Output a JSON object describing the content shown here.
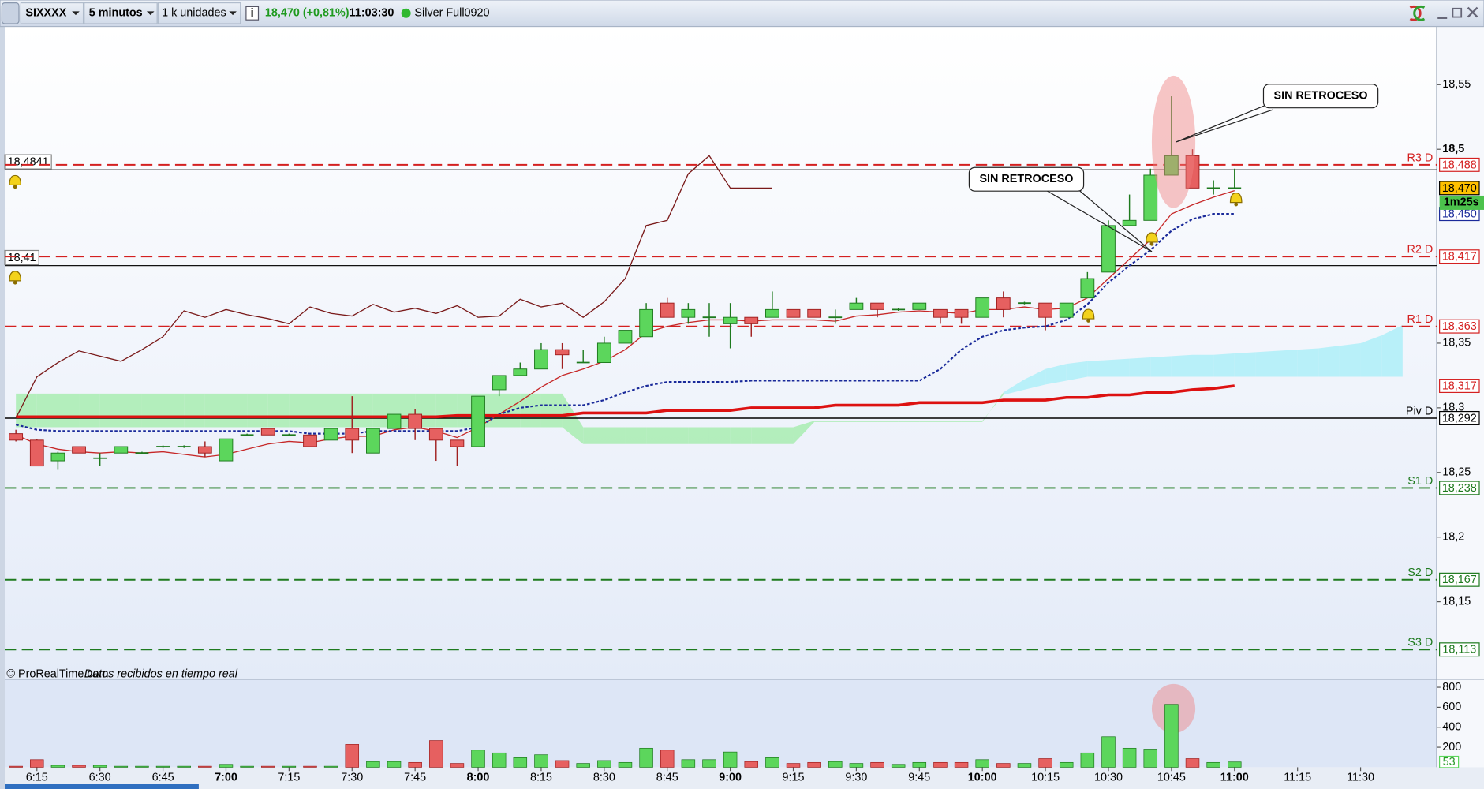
{
  "toolbar": {
    "symbol": "SIXXXX",
    "interval": "5 minutos",
    "units": "1 k unidades",
    "quote": "18,470 (+0,81%)",
    "time": "11:03:30",
    "instrument": "Silver Full0920"
  },
  "chart_data": [
    {
      "type": "candlestick",
      "categories": [
        null,
        "6:15",
        null,
        null,
        "6:30",
        null,
        null,
        "6:45",
        null,
        null,
        "7:00",
        null,
        null,
        "7:15",
        null,
        null,
        "7:30",
        null,
        null,
        "7:45",
        null,
        null,
        "8:00",
        null,
        null,
        "8:15",
        null,
        null,
        "8:30",
        null,
        null,
        "8:45",
        null,
        null,
        "9:00",
        null,
        null,
        "9:15",
        null,
        null,
        "9:30",
        null,
        null,
        "9:45",
        null,
        null,
        "10:00",
        null,
        null,
        "10:15",
        null,
        null,
        "10:30",
        null,
        null,
        "10:45",
        null,
        null,
        "11:00",
        null,
        null,
        "11:15",
        null,
        null,
        "11:30",
        null,
        null
      ],
      "open": [
        18.28,
        18.275,
        18.259,
        18.27,
        18.261,
        18.265,
        18.265,
        18.27,
        18.27,
        18.27,
        18.259,
        18.279,
        18.284,
        18.279,
        18.279,
        18.275,
        18.284,
        18.265,
        18.284,
        18.295,
        18.284,
        18.275,
        18.27,
        18.314,
        18.325,
        18.33,
        18.345,
        18.335,
        18.335,
        18.35,
        18.355,
        18.381,
        18.37,
        18.37,
        18.365,
        18.37,
        18.37,
        18.376,
        18.376,
        18.37,
        18.376,
        18.381,
        18.376,
        18.376,
        18.376,
        18.376,
        18.37,
        18.385,
        18.381,
        18.381,
        18.37,
        18.385,
        18.405,
        18.441,
        18.445,
        18.48,
        18.495,
        18.47,
        18.47,
        null,
        null,
        null,
        null,
        null,
        null,
        null,
        null
      ],
      "high": [
        18.283,
        18.276,
        18.266,
        18.27,
        18.265,
        18.27,
        18.266,
        18.271,
        18.271,
        18.274,
        18.276,
        18.28,
        18.284,
        18.28,
        18.279,
        18.284,
        18.309,
        18.284,
        18.295,
        18.299,
        18.284,
        18.275,
        18.309,
        18.325,
        18.335,
        18.35,
        18.35,
        18.345,
        18.355,
        18.36,
        18.381,
        18.385,
        18.381,
        18.381,
        18.381,
        18.37,
        18.39,
        18.376,
        18.376,
        18.376,
        18.385,
        18.381,
        18.377,
        18.381,
        18.376,
        18.376,
        18.385,
        18.39,
        18.382,
        18.381,
        18.381,
        18.405,
        18.445,
        18.465,
        18.485,
        18.541,
        18.5,
        18.476,
        18.485,
        null,
        null,
        null,
        null,
        null,
        null,
        null,
        null
      ],
      "low": [
        18.274,
        18.255,
        18.252,
        18.265,
        18.255,
        18.265,
        18.264,
        18.269,
        18.269,
        18.262,
        18.259,
        18.278,
        18.279,
        18.278,
        18.27,
        18.275,
        18.265,
        18.265,
        18.284,
        18.275,
        18.259,
        18.255,
        18.27,
        18.309,
        18.325,
        18.33,
        18.33,
        18.335,
        18.335,
        18.35,
        18.355,
        18.37,
        18.365,
        18.355,
        18.346,
        18.355,
        18.37,
        18.37,
        18.37,
        18.365,
        18.376,
        18.37,
        18.375,
        18.376,
        18.365,
        18.365,
        18.37,
        18.37,
        18.38,
        18.36,
        18.37,
        18.385,
        18.405,
        18.441,
        18.445,
        18.48,
        18.47,
        18.465,
        18.47,
        null,
        null,
        null,
        null,
        null,
        null,
        null,
        null
      ],
      "close": [
        18.275,
        18.255,
        18.265,
        18.265,
        18.261,
        18.27,
        18.265,
        18.27,
        18.27,
        18.265,
        18.276,
        18.279,
        18.279,
        18.279,
        18.27,
        18.284,
        18.275,
        18.284,
        18.295,
        18.284,
        18.275,
        18.27,
        18.309,
        18.325,
        18.33,
        18.345,
        18.341,
        18.335,
        18.35,
        18.36,
        18.376,
        18.37,
        18.376,
        18.37,
        18.37,
        18.365,
        18.376,
        18.37,
        18.37,
        18.37,
        18.381,
        18.376,
        18.376,
        18.381,
        18.37,
        18.37,
        18.385,
        18.376,
        18.381,
        18.37,
        18.381,
        18.4,
        18.441,
        18.445,
        18.48,
        18.495,
        18.47,
        18.47,
        18.47,
        null,
        null,
        null,
        null,
        null,
        null,
        null,
        null
      ],
      "up_color": "#5cd65c",
      "down_color": "#e66060",
      "doji_color": "#1e7a1e",
      "ylim": [
        18.09,
        18.595
      ],
      "yticks": [
        {
          "value": 18.15,
          "label": "18,15"
        },
        {
          "value": 18.2,
          "label": "18,2"
        },
        {
          "value": 18.25,
          "label": "18,25"
        },
        {
          "value": 18.3,
          "label": "18,3"
        },
        {
          "value": 18.35,
          "label": "18,35"
        },
        {
          "value": 18.5,
          "label": "18,5"
        },
        {
          "value": 18.55,
          "label": "18,55"
        }
      ],
      "overlays": [
        {
          "color": "#c62828",
          "style": "thin",
          "values": [
            18.279,
            18.272,
            18.268,
            18.266,
            18.265,
            18.266,
            18.265,
            18.266,
            18.264,
            18.262,
            18.264,
            18.268,
            18.272,
            18.274,
            18.273,
            18.276,
            18.278,
            18.278,
            18.283,
            18.285,
            18.282,
            18.277,
            18.285,
            18.295,
            18.305,
            18.316,
            18.325,
            18.33,
            18.336,
            18.345,
            18.358,
            18.363,
            18.366,
            18.368,
            18.368,
            18.367,
            18.368,
            18.368,
            18.368,
            18.367,
            18.371,
            18.372,
            18.374,
            18.375,
            18.374,
            18.373,
            18.376,
            18.376,
            18.378,
            18.376,
            18.377,
            18.385,
            18.4,
            18.415,
            18.43,
            18.45,
            18.457,
            18.463,
            18.468,
            null,
            null,
            null,
            null,
            null,
            null,
            null,
            null
          ]
        },
        {
          "color": "#1a2a9a",
          "style": "dotted",
          "values": [
            18.287,
            18.283,
            18.282,
            18.282,
            18.282,
            18.282,
            18.282,
            18.282,
            18.282,
            18.282,
            18.282,
            18.282,
            18.282,
            18.282,
            18.28,
            18.28,
            18.28,
            18.282,
            18.282,
            18.282,
            18.282,
            18.282,
            18.285,
            18.295,
            18.3,
            18.302,
            18.302,
            18.302,
            18.306,
            18.312,
            18.317,
            18.32,
            18.32,
            18.32,
            18.32,
            18.321,
            18.321,
            18.321,
            18.321,
            18.321,
            18.321,
            18.321,
            18.321,
            18.321,
            18.33,
            18.345,
            18.355,
            18.36,
            18.362,
            18.363,
            18.368,
            18.38,
            18.397,
            18.41,
            18.422,
            18.437,
            18.446,
            18.45,
            18.45,
            null,
            null,
            null,
            null,
            null,
            null,
            null,
            null
          ]
        },
        {
          "color": "#dd1111",
          "style": "thick",
          "values": [
            18.293,
            18.293,
            18.293,
            18.293,
            18.293,
            18.293,
            18.293,
            18.293,
            18.293,
            18.293,
            18.293,
            18.293,
            18.293,
            18.293,
            18.293,
            18.293,
            18.293,
            18.293,
            18.293,
            18.293,
            18.293,
            18.294,
            18.294,
            18.294,
            18.294,
            18.294,
            18.294,
            18.296,
            18.296,
            18.296,
            18.296,
            18.298,
            18.298,
            18.298,
            18.298,
            18.3,
            18.3,
            18.3,
            18.3,
            18.302,
            18.302,
            18.302,
            18.302,
            18.304,
            18.304,
            18.304,
            18.304,
            18.306,
            18.306,
            18.306,
            18.308,
            18.308,
            18.31,
            18.31,
            18.312,
            18.312,
            18.314,
            18.315,
            18.317,
            null,
            null,
            null,
            null,
            null,
            null,
            null,
            null
          ]
        },
        {
          "color": "#7a1a1a",
          "style": "thin",
          "values": [
            18.292,
            18.324,
            18.335,
            18.344,
            18.34,
            18.336,
            18.345,
            18.355,
            18.375,
            18.37,
            18.376,
            18.372,
            18.369,
            18.365,
            18.378,
            18.373,
            18.371,
            18.38,
            18.374,
            18.377,
            18.373,
            18.379,
            18.37,
            18.371,
            18.384,
            18.378,
            18.381,
            18.37,
            18.382,
            18.4,
            18.441,
            18.445,
            18.481,
            18.495,
            18.47,
            18.47,
            18.47,
            null,
            null,
            null,
            null,
            null,
            null,
            null,
            null,
            null,
            null,
            null,
            null,
            null,
            null,
            null,
            null,
            null,
            null,
            null,
            null,
            null,
            null,
            null,
            null,
            null,
            null,
            null,
            null,
            null,
            null
          ]
        }
      ],
      "cloud": {
        "colors": [
          "#a8ecb0",
          "#aeeef8"
        ],
        "span_a": [
          18.311,
          18.311,
          18.311,
          18.311,
          18.311,
          18.311,
          18.311,
          18.311,
          18.311,
          18.311,
          18.311,
          18.311,
          18.311,
          18.311,
          18.311,
          18.311,
          18.311,
          18.311,
          18.311,
          18.311,
          18.311,
          18.311,
          18.311,
          18.311,
          18.311,
          18.311,
          18.311,
          18.285,
          18.285,
          18.285,
          18.285,
          18.285,
          18.285,
          18.285,
          18.285,
          18.285,
          18.285,
          18.285,
          18.29,
          18.29,
          18.29,
          18.29,
          18.29,
          18.29,
          18.29,
          18.29,
          18.29,
          18.31,
          18.314,
          18.318,
          18.321,
          18.324,
          18.324,
          18.324,
          18.324,
          18.324,
          18.324,
          18.324,
          18.324,
          18.324,
          18.324,
          18.324,
          18.324,
          18.324,
          18.324,
          18.324,
          18.324
        ],
        "span_b": [
          18.285,
          18.285,
          18.285,
          18.285,
          18.285,
          18.285,
          18.285,
          18.285,
          18.285,
          18.285,
          18.285,
          18.285,
          18.285,
          18.285,
          18.285,
          18.285,
          18.285,
          18.285,
          18.285,
          18.285,
          18.285,
          18.285,
          18.285,
          18.285,
          18.285,
          18.285,
          18.285,
          18.272,
          18.272,
          18.272,
          18.272,
          18.272,
          18.272,
          18.272,
          18.272,
          18.272,
          18.272,
          18.272,
          18.289,
          18.289,
          18.289,
          18.289,
          18.289,
          18.289,
          18.289,
          18.289,
          18.289,
          18.312,
          18.322,
          18.33,
          18.334,
          18.336,
          18.337,
          18.338,
          18.339,
          18.34,
          18.341,
          18.341,
          18.342,
          18.343,
          18.344,
          18.345,
          18.346,
          18.348,
          18.35,
          18.356,
          18.364
        ]
      },
      "levels": [
        {
          "name": "R3 D",
          "value": 18.488,
          "label": "18,488",
          "color": "#d42020",
          "style": "dashed"
        },
        {
          "name": "R2 D",
          "value": 18.417,
          "label": "18,417",
          "color": "#d42020",
          "style": "dashed"
        },
        {
          "name": "R1 D",
          "value": 18.363,
          "label": "18,363",
          "color": "#d42020",
          "style": "dashed"
        },
        {
          "name": "Piv D",
          "value": 18.292,
          "label": "18,292",
          "color": "#000000",
          "style": "solid"
        },
        {
          "name": "S1 D",
          "value": 18.238,
          "label": "18,238",
          "color": "#1e7a1e",
          "style": "dashed"
        },
        {
          "name": "S2 D",
          "value": 18.167,
          "label": "18,167",
          "color": "#1e7a1e",
          "style": "dashed"
        },
        {
          "name": "S3 D",
          "value": 18.113,
          "label": "18,113",
          "color": "#1e7a1e",
          "style": "dashed"
        }
      ],
      "marker_lines": [
        {
          "value": 18.4841,
          "label": "18,4841"
        },
        {
          "value": 18.41,
          "label": "18,41"
        }
      ],
      "price_tags": [
        {
          "value": 18.47,
          "label": "18,470",
          "background": "#ffc000",
          "color": "#000000"
        },
        {
          "value": 18.45,
          "label": "18,450",
          "background": "#ffffff",
          "color": "#1a2a9a"
        },
        {
          "value": 18.317,
          "label": "18,317",
          "background": "#ffffff",
          "color": "#d42020"
        }
      ],
      "countdown": "1m25s",
      "annotations": [
        "SIN RETROCESO",
        "SIN RETROCESO"
      ],
      "source": "© ProRealTime.com",
      "source_note": "Datos recibidos en tiempo real"
    },
    {
      "type": "volume",
      "values": [
        10,
        76,
        19,
        19,
        19,
        10,
        10,
        10,
        10,
        10,
        29,
        10,
        10,
        10,
        10,
        10,
        229,
        57,
        57,
        48,
        267,
        38,
        171,
        143,
        95,
        124,
        67,
        38,
        67,
        48,
        190,
        171,
        76,
        76,
        152,
        57,
        95,
        38,
        48,
        57,
        38,
        48,
        29,
        48,
        48,
        48,
        76,
        38,
        38,
        86,
        48,
        143,
        305,
        190,
        181,
        629,
        86,
        48,
        53,
        null,
        null,
        null,
        null,
        null,
        null,
        null,
        null
      ],
      "ylim": [
        0,
        880
      ],
      "yticks": [
        200,
        400,
        600,
        800
      ]
    }
  ]
}
